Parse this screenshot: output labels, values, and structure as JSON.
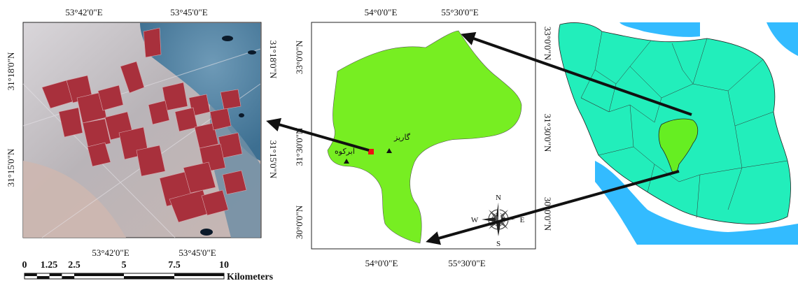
{
  "satellite_panel": {
    "top_labels": [
      "53°42'0\"E",
      "53°45'0\"E"
    ],
    "bottom_labels": [
      "53°42'0\"E",
      "53°45'0\"E"
    ],
    "left_labels": [
      "31°18'0\"N",
      "31°15'0\"N"
    ],
    "right_labels": [
      "31°18'0\"N",
      "31°15'0\"N"
    ]
  },
  "scale_bar": {
    "ticks": [
      "0",
      "1.25",
      "2.5",
      "5",
      "7.5",
      "10"
    ],
    "unit": "Kilometers"
  },
  "province_panel": {
    "top_labels": [
      "54°0'0\"E",
      "55°30'0\"E"
    ],
    "bottom_labels": [
      "54°0'0\"E",
      "55°30'0\"E"
    ],
    "left_labels": [
      "33°0'0\"N",
      "31°30'0\"N",
      "30°0'0\"N"
    ],
    "right_labels": [
      "33°0'0\"N",
      "31°30'0\"N",
      "30°0'0\"N"
    ],
    "places": [
      "گاریز",
      "ابرکوه"
    ],
    "compass": {
      "n": "N",
      "s": "S",
      "e": "E",
      "w": "W"
    }
  },
  "colors": {
    "province_fill": "#77ee22",
    "province_highlight": "#66ee22",
    "country_fill": "#22eebb",
    "sea": "#33bbff",
    "study_marker": "#ee1111",
    "farm_red": "#a8303c",
    "desert": "#c9c2c0",
    "salt_lake": "#5c8fae"
  },
  "icons": [
    "station-triangle-icon",
    "study-area-square-icon",
    "compass-rose-icon"
  ]
}
